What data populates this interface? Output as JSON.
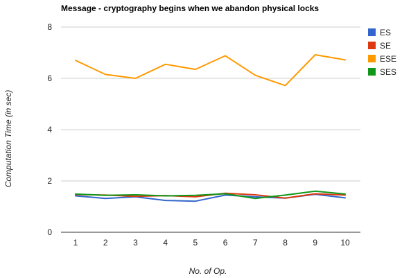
{
  "chart_data": {
    "type": "line",
    "title": "Message - cryptography begins when we abandon physical locks",
    "xlabel": "No. of Op.",
    "ylabel": "Computation Time (in sec)",
    "categories": [
      "1",
      "2",
      "3",
      "4",
      "5",
      "6",
      "7",
      "8",
      "9",
      "10"
    ],
    "ylim": [
      0,
      8
    ],
    "yticks": [
      "0",
      "2",
      "4",
      "6",
      "8"
    ],
    "grid": true,
    "legend_position": "right",
    "series": [
      {
        "name": "ES",
        "color": "#3366cc",
        "values": [
          1.42,
          1.32,
          1.38,
          1.24,
          1.21,
          1.45,
          1.38,
          1.33,
          1.48,
          1.34
        ]
      },
      {
        "name": "SE",
        "color": "#dc3912",
        "values": [
          1.47,
          1.45,
          1.4,
          1.43,
          1.38,
          1.52,
          1.46,
          1.33,
          1.5,
          1.45
        ]
      },
      {
        "name": "ESE",
        "color": "#ff9900",
        "values": [
          6.7,
          6.15,
          6.0,
          6.55,
          6.35,
          6.88,
          6.12,
          5.72,
          6.92,
          6.72
        ]
      },
      {
        "name": "SES",
        "color": "#109618",
        "values": [
          1.49,
          1.44,
          1.46,
          1.42,
          1.44,
          1.5,
          1.32,
          1.45,
          1.6,
          1.49
        ]
      }
    ]
  }
}
